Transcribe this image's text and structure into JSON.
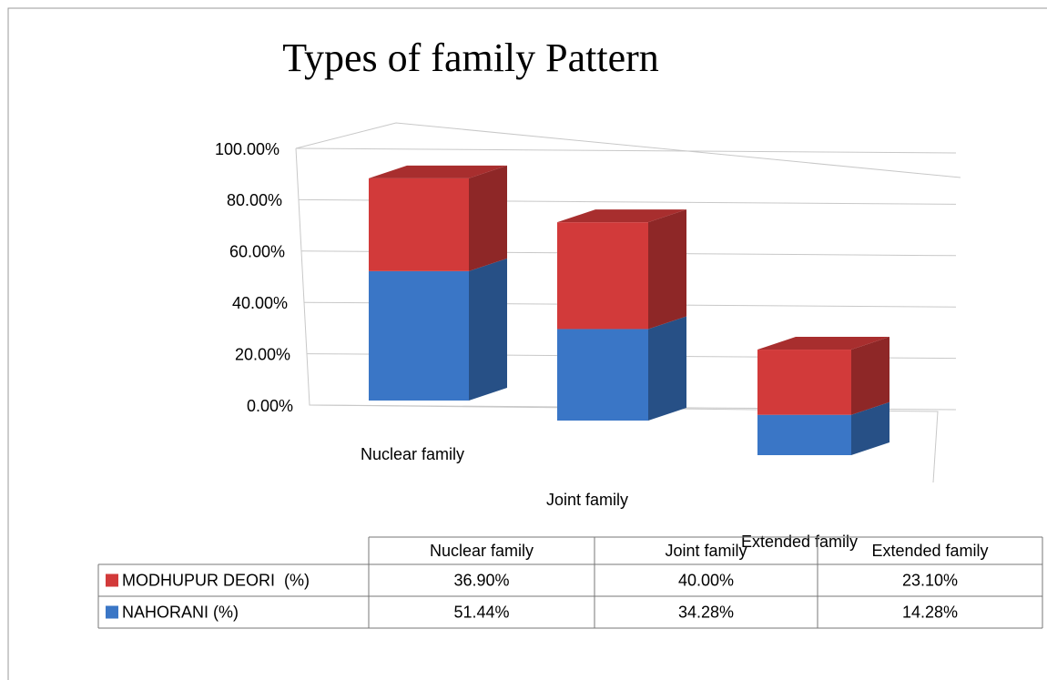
{
  "chart_data": {
    "type": "bar3d_stacked",
    "title": "Types of family Pattern",
    "categories": [
      "Nuclear family",
      "Joint family",
      "Extended family"
    ],
    "series": [
      {
        "name": "NAHORANI (%)",
        "color": "#3a76c6",
        "values": [
          51.44,
          34.28,
          14.28
        ],
        "value_labels": [
          "51.44%",
          "34.28%",
          "14.28%"
        ]
      },
      {
        "name": "MODHUPUR DEORI  (%)",
        "color": "#d23a3a",
        "values": [
          36.9,
          40.0,
          23.1
        ],
        "value_labels": [
          "36.90%",
          "40.00%",
          "23.10%"
        ]
      }
    ],
    "ylim": [
      0,
      100
    ],
    "yticks": [
      {
        "value": 0,
        "label": "0.00%"
      },
      {
        "value": 20,
        "label": "20.00%"
      },
      {
        "value": 40,
        "label": "40.00%"
      },
      {
        "value": 60,
        "label": "60.00%"
      },
      {
        "value": 80,
        "label": "80.00%"
      },
      {
        "value": 100,
        "label": "100.00%"
      }
    ],
    "grid": true
  }
}
